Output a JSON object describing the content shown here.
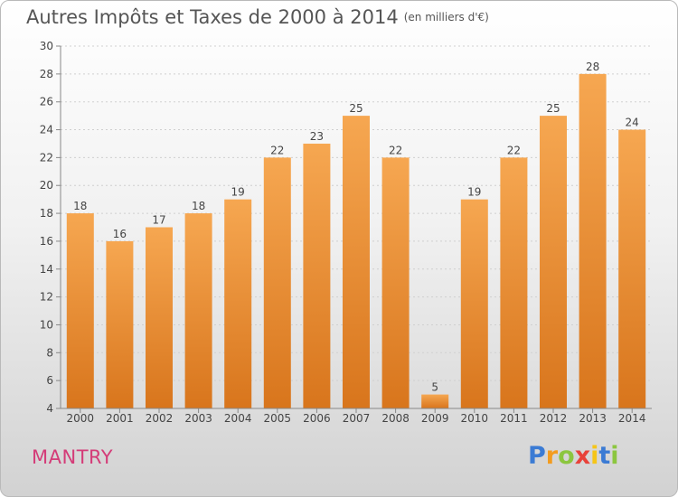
{
  "title": "Autres Impôts et Taxes de 2000 à 2014",
  "subtitle": "(en milliers d'€)",
  "town": "MANTRY",
  "logo": {
    "letters": [
      "P",
      "r",
      "o",
      "x",
      "i",
      "t",
      "i"
    ],
    "colors": [
      "#3b7bd4",
      "#f39c1f",
      "#8cc63f",
      "#e8423a",
      "#f5c518",
      "#3b7bd4",
      "#8cc63f"
    ]
  },
  "colors": {
    "bar_top": "#f6a751",
    "bar_bottom": "#d8751c",
    "axis": "#888888",
    "grid": "#cfcfcf"
  },
  "chart_data": {
    "type": "bar",
    "title": "Autres Impôts et Taxes de 2000 à 2014",
    "subtitle": "(en milliers d'€)",
    "xlabel": "",
    "ylabel": "",
    "categories": [
      "2000",
      "2001",
      "2002",
      "2003",
      "2004",
      "2005",
      "2006",
      "2007",
      "2008",
      "2009",
      "2010",
      "2011",
      "2012",
      "2013",
      "2014"
    ],
    "values": [
      18,
      16,
      17,
      18,
      19,
      22,
      23,
      25,
      22,
      5,
      19,
      22,
      25,
      28,
      24
    ],
    "ylim": [
      4,
      30
    ],
    "yticks": [
      4,
      6,
      8,
      10,
      12,
      14,
      16,
      18,
      20,
      22,
      24,
      26,
      28,
      30
    ],
    "grid": true,
    "legend": "none"
  }
}
